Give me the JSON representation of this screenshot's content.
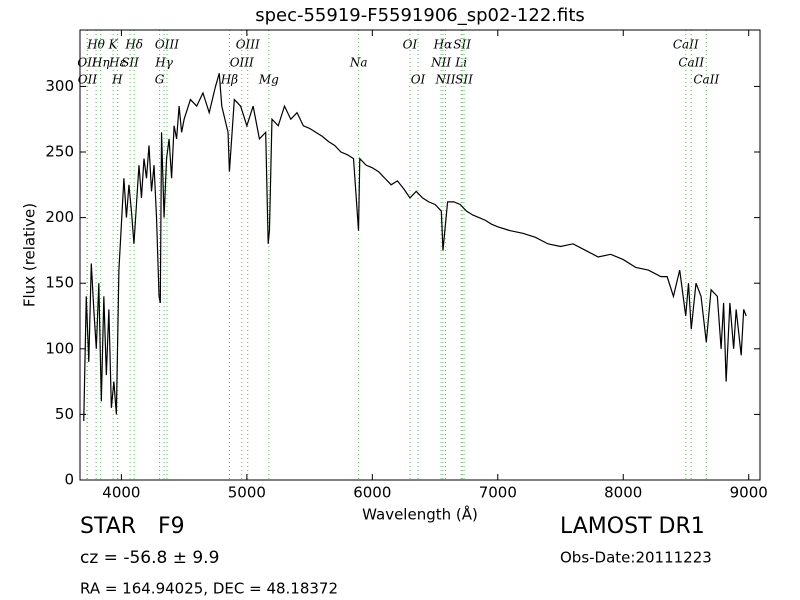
{
  "chart_data": {
    "type": "line",
    "title": "spec-55919-F5591906_sp02-122.fits",
    "xlabel": "Wavelength (Å)",
    "ylabel": "Flux (relative)",
    "xlim": [
      3670,
      9090
    ],
    "ylim": [
      0,
      343
    ],
    "xticks": [
      4000,
      5000,
      6000,
      7000,
      8000,
      9000
    ],
    "yticks": [
      0,
      50,
      100,
      150,
      200,
      250,
      300
    ],
    "color": "#000000",
    "marker_color": "#66bb66",
    "x": [
      3700,
      3720,
      3740,
      3760,
      3780,
      3800,
      3820,
      3840,
      3860,
      3880,
      3900,
      3920,
      3940,
      3960,
      3980,
      4000,
      4020,
      4040,
      4060,
      4080,
      4100,
      4120,
      4140,
      4160,
      4180,
      4200,
      4220,
      4240,
      4260,
      4280,
      4300,
      4310,
      4320,
      4340,
      4360,
      4380,
      4400,
      4420,
      4440,
      4460,
      4480,
      4500,
      4550,
      4600,
      4650,
      4700,
      4750,
      4780,
      4800,
      4850,
      4861,
      4900,
      4950,
      5000,
      5050,
      5100,
      5150,
      5170,
      5180,
      5200,
      5250,
      5300,
      5350,
      5400,
      5450,
      5500,
      5550,
      5600,
      5650,
      5700,
      5750,
      5800,
      5850,
      5890,
      5900,
      5950,
      6000,
      6050,
      6100,
      6150,
      6200,
      6250,
      6300,
      6350,
      6400,
      6450,
      6500,
      6550,
      6563,
      6600,
      6650,
      6700,
      6750,
      6800,
      6850,
      6900,
      6950,
      7000,
      7100,
      7200,
      7300,
      7400,
      7500,
      7600,
      7700,
      7800,
      7900,
      8000,
      8100,
      8200,
      8300,
      8350,
      8400,
      8450,
      8498,
      8520,
      8542,
      8580,
      8620,
      8662,
      8700,
      8750,
      8780,
      8800,
      8820,
      8850,
      8880,
      8900,
      8940,
      8960,
      8980
    ],
    "values": [
      45,
      140,
      90,
      165,
      130,
      100,
      150,
      60,
      140,
      80,
      130,
      55,
      75,
      50,
      160,
      195,
      230,
      200,
      225,
      205,
      180,
      210,
      240,
      215,
      245,
      230,
      255,
      220,
      240,
      200,
      140,
      135,
      265,
      200,
      245,
      260,
      230,
      270,
      260,
      285,
      265,
      275,
      290,
      285,
      295,
      280,
      300,
      310,
      285,
      265,
      235,
      290,
      285,
      270,
      285,
      260,
      265,
      180,
      190,
      275,
      270,
      285,
      275,
      280,
      270,
      268,
      265,
      262,
      258,
      255,
      250,
      248,
      245,
      190,
      245,
      240,
      238,
      235,
      230,
      225,
      228,
      222,
      215,
      220,
      215,
      212,
      210,
      205,
      175,
      212,
      212,
      210,
      205,
      202,
      200,
      198,
      195,
      193,
      190,
      188,
      185,
      180,
      178,
      180,
      175,
      170,
      172,
      168,
      162,
      160,
      155,
      155,
      140,
      160,
      125,
      150,
      115,
      150,
      140,
      105,
      145,
      140,
      100,
      135,
      75,
      135,
      100,
      130,
      95,
      130,
      125
    ],
    "line_markers": [
      [
        {
          "label": "Hθ",
          "x": 3798
        },
        {
          "label": "K",
          "x": 3934
        },
        {
          "label": "Hδ",
          "x": 4102
        },
        {
          "label": "OIII",
          "x": 4363
        },
        {
          "label": "OIII",
          "x": 5007
        },
        {
          "label": "OI",
          "x": 6300
        },
        {
          "label": "Hα",
          "x": 6563
        },
        {
          "label": "SII",
          "x": 6716
        },
        {
          "label": "CaII",
          "x": 8498
        }
      ],
      [
        {
          "label": "OII",
          "x": 3726
        },
        {
          "label": "Hη",
          "x": 3835
        },
        {
          "label": "Hε",
          "x": 3970
        },
        {
          "label": "SII",
          "x": 4069
        },
        {
          "label": "Hγ",
          "x": 4340
        },
        {
          "label": "OIII",
          "x": 4959
        },
        {
          "label": "Na",
          "x": 5891
        },
        {
          "label": "NII",
          "x": 6548
        },
        {
          "label": "Li",
          "x": 6708
        },
        {
          "label": "CaII",
          "x": 8542
        }
      ],
      [
        {
          "label": "OII",
          "x": 3729
        },
        {
          "label": "H",
          "x": 3968
        },
        {
          "label": "G",
          "x": 4304
        },
        {
          "label": "Hβ",
          "x": 4861
        },
        {
          "label": "Mg",
          "x": 5175
        },
        {
          "label": "OI",
          "x": 6364
        },
        {
          "label": "NII",
          "x": 6583
        },
        {
          "label": "SII",
          "x": 6731
        },
        {
          "label": "CaII",
          "x": 8662
        }
      ]
    ]
  },
  "info": {
    "class": "STAR",
    "subclass": "F9",
    "cz": "cz = -56.8 ± 9.9",
    "coords": "RA = 164.94025, DEC = 48.18372",
    "survey": "LAMOST DR1",
    "obs_date": "Obs-Date:20111223"
  }
}
